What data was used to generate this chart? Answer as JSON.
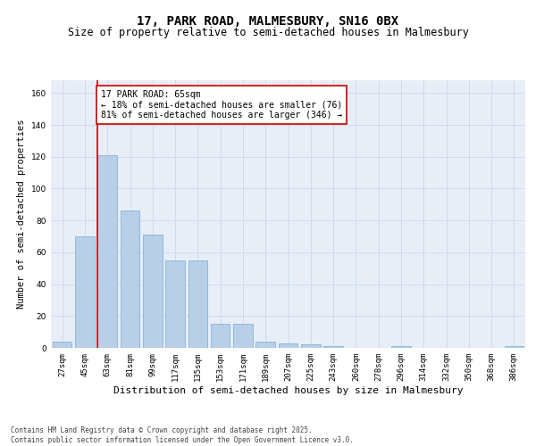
{
  "title1": "17, PARK ROAD, MALMESBURY, SN16 0BX",
  "title2": "Size of property relative to semi-detached houses in Malmesbury",
  "xlabel": "Distribution of semi-detached houses by size in Malmesbury",
  "ylabel": "Number of semi-detached properties",
  "categories": [
    "27sqm",
    "45sqm",
    "63sqm",
    "81sqm",
    "99sqm",
    "117sqm",
    "135sqm",
    "153sqm",
    "171sqm",
    "189sqm",
    "207sqm",
    "225sqm",
    "243sqm",
    "260sqm",
    "278sqm",
    "296sqm",
    "314sqm",
    "332sqm",
    "350sqm",
    "368sqm",
    "386sqm"
  ],
  "values": [
    4,
    70,
    121,
    86,
    71,
    55,
    55,
    15,
    15,
    4,
    3,
    2,
    1,
    0,
    0,
    1,
    0,
    0,
    0,
    0,
    1
  ],
  "bar_color": "#b8cfe8",
  "bar_edge_color": "#7aaad0",
  "vline_index": 2,
  "annotation_text": "17 PARK ROAD: 65sqm\n← 18% of semi-detached houses are smaller (76)\n81% of semi-detached houses are larger (346) →",
  "annotation_box_color": "#ffffff",
  "annotation_box_edge": "#cc0000",
  "vline_color": "#cc0000",
  "ylim": [
    0,
    168
  ],
  "yticks": [
    0,
    20,
    40,
    60,
    80,
    100,
    120,
    140,
    160
  ],
  "grid_color": "#c8d8ec",
  "bg_color": "#e8eef8",
  "footer_text": "Contains HM Land Registry data © Crown copyright and database right 2025.\nContains public sector information licensed under the Open Government Licence v3.0.",
  "title1_fontsize": 10,
  "title2_fontsize": 8.5,
  "xlabel_fontsize": 8,
  "ylabel_fontsize": 7.5,
  "tick_fontsize": 6.5,
  "annotation_fontsize": 7,
  "footer_fontsize": 5.5
}
